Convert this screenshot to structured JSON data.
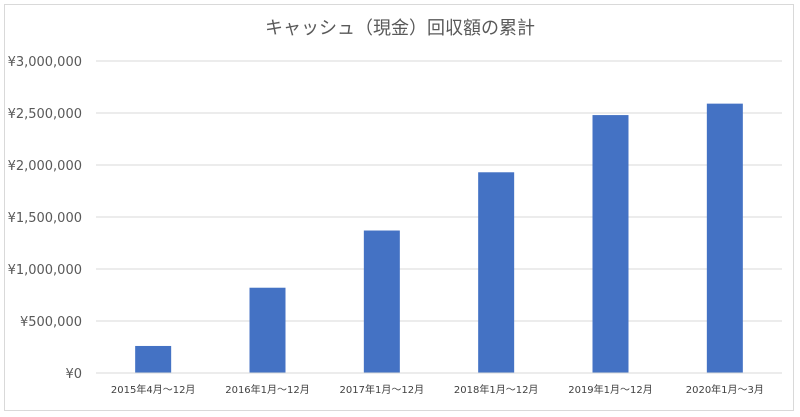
{
  "chart_data": {
    "type": "bar",
    "title": "キャッシュ（現金）回収額の累計",
    "xlabel": "",
    "ylabel": "",
    "categories": [
      "2015年4月～12月",
      "2016年1月～12月",
      "2017年1月～12月",
      "2018年1月～12月",
      "2019年1月～12月",
      "2020年1月～3月"
    ],
    "values": [
      260000,
      820000,
      1370000,
      1930000,
      2480000,
      2590000
    ],
    "ylim": [
      0,
      3000000
    ],
    "yticks": [
      0,
      500000,
      1000000,
      1500000,
      2000000,
      2500000,
      3000000
    ],
    "ytick_labels": [
      "¥0",
      "¥500,000",
      "¥1,000,000",
      "¥1,500,000",
      "¥2,000,000",
      "¥2,500,000",
      "¥3,000,000"
    ],
    "grid": true,
    "legend": "none",
    "bar_color": "#4472c4"
  }
}
